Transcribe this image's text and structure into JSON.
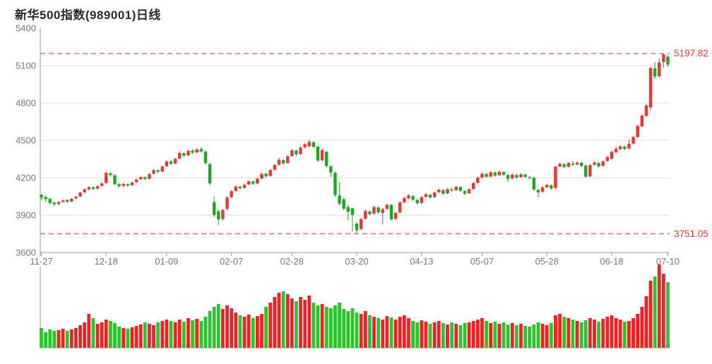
{
  "header": {
    "title": "新华500指数(989001)日线"
  },
  "chart_data": {
    "type": "candlestick",
    "title": "新华500指数(989001)日线",
    "legend_position": "none",
    "grid": true,
    "y_range": [
      3600,
      5400
    ],
    "y_ticks": [
      5400,
      5100,
      4800,
      4500,
      4200,
      3900,
      3600
    ],
    "x_tick_labels": [
      "11-27",
      "12-18",
      "01-09",
      "02-07",
      "02-28",
      "03-20",
      "04-13",
      "05-07",
      "05-28",
      "06-18",
      "07-10"
    ],
    "x_tick_indices": [
      0,
      15,
      29,
      44,
      58,
      73,
      88,
      102,
      117,
      132,
      145
    ],
    "upper_reference": {
      "value": 5197.82,
      "label": "5197.82"
    },
    "lower_reference": {
      "value": 3751.05,
      "label": "3751.05"
    },
    "colors": {
      "up": "#e53935",
      "down": "#1fa81f",
      "volume_up": "#ee2222",
      "volume_down": "#2bc42b",
      "reference_line": "#f58080",
      "reference_text": "#e8352f",
      "grid": "#dcdcdc",
      "axis": "#999999",
      "tick_text": "#787878",
      "title_text": "#2a2a2a"
    },
    "candles": [
      [
        4063,
        4070,
        4020,
        4042
      ],
      [
        4045,
        4058,
        4008,
        4030
      ],
      [
        4032,
        4038,
        3988,
        3998
      ],
      [
        4000,
        4012,
        3972,
        3988
      ],
      [
        3990,
        4012,
        3978,
        4005
      ],
      [
        4006,
        4026,
        4000,
        4018
      ],
      [
        4022,
        4028,
        3998,
        4008
      ],
      [
        4010,
        4038,
        4004,
        4032
      ],
      [
        4034,
        4054,
        4028,
        4048
      ],
      [
        4050,
        4088,
        4044,
        4082
      ],
      [
        4084,
        4114,
        4076,
        4108
      ],
      [
        4106,
        4132,
        4098,
        4124
      ],
      [
        4124,
        4130,
        4100,
        4110
      ],
      [
        4112,
        4140,
        4106,
        4132
      ],
      [
        4134,
        4162,
        4128,
        4155
      ],
      [
        4158,
        4248,
        4150,
        4238
      ],
      [
        4235,
        4244,
        4210,
        4222
      ],
      [
        4220,
        4228,
        4140,
        4150
      ],
      [
        4148,
        4158,
        4120,
        4132
      ],
      [
        4135,
        4160,
        4125,
        4150
      ],
      [
        4148,
        4156,
        4126,
        4138
      ],
      [
        4140,
        4170,
        4134,
        4162
      ],
      [
        4164,
        4194,
        4158,
        4186
      ],
      [
        4188,
        4214,
        4180,
        4206
      ],
      [
        4204,
        4212,
        4180,
        4190
      ],
      [
        4192,
        4238,
        4186,
        4230
      ],
      [
        4232,
        4272,
        4226,
        4262
      ],
      [
        4260,
        4268,
        4238,
        4248
      ],
      [
        4250,
        4298,
        4244,
        4290
      ],
      [
        4292,
        4340,
        4286,
        4330
      ],
      [
        4332,
        4340,
        4302,
        4312
      ],
      [
        4314,
        4360,
        4308,
        4352
      ],
      [
        4354,
        4412,
        4348,
        4398
      ],
      [
        4396,
        4404,
        4366,
        4378
      ],
      [
        4380,
        4424,
        4374,
        4415
      ],
      [
        4418,
        4430,
        4392,
        4402
      ],
      [
        4404,
        4436,
        4398,
        4428
      ],
      [
        4430,
        4445,
        4400,
        4412
      ],
      [
        4410,
        4418,
        4305,
        4318
      ],
      [
        4310,
        4320,
        4140,
        4155
      ],
      [
        4005,
        4050,
        3885,
        3902
      ],
      [
        3932,
        3945,
        3822,
        3866
      ],
      [
        3870,
        3952,
        3852,
        3942
      ],
      [
        3950,
        4052,
        3938,
        4042
      ],
      [
        4044,
        4102,
        4036,
        4092
      ],
      [
        4094,
        4140,
        4086,
        4130
      ],
      [
        4128,
        4136,
        4106,
        4116
      ],
      [
        4118,
        4152,
        4112,
        4144
      ],
      [
        4146,
        4180,
        4140,
        4172
      ],
      [
        4170,
        4178,
        4142,
        4152
      ],
      [
        4155,
        4200,
        4148,
        4192
      ],
      [
        4194,
        4240,
        4188,
        4230
      ],
      [
        4232,
        4240,
        4202,
        4212
      ],
      [
        4215,
        4270,
        4208,
        4262
      ],
      [
        4264,
        4312,
        4258,
        4302
      ],
      [
        4305,
        4362,
        4298,
        4345
      ],
      [
        4342,
        4352,
        4305,
        4315
      ],
      [
        4318,
        4380,
        4312,
        4372
      ],
      [
        4374,
        4432,
        4368,
        4420
      ],
      [
        4418,
        4428,
        4375,
        4388
      ],
      [
        4390,
        4452,
        4384,
        4442
      ],
      [
        4444,
        4480,
        4436,
        4470
      ],
      [
        4452,
        4505,
        4444,
        4488
      ],
      [
        4486,
        4492,
        4438,
        4448
      ],
      [
        4450,
        4458,
        4326,
        4338
      ],
      [
        4340,
        4435,
        4332,
        4422
      ],
      [
        4408,
        4418,
        4282,
        4295
      ],
      [
        4292,
        4300,
        4205,
        4242
      ],
      [
        4240,
        4250,
        4048,
        4062
      ],
      [
        4058,
        4165,
        3976,
        3992
      ],
      [
        4028,
        4040,
        3938,
        3952
      ],
      [
        3965,
        3985,
        3858,
        3928
      ],
      [
        3955,
        3962,
        3768,
        3902
      ],
      [
        3832,
        3845,
        3751.05,
        3778
      ],
      [
        3788,
        3880,
        3780,
        3868
      ],
      [
        3872,
        3945,
        3865,
        3932
      ],
      [
        3930,
        3938,
        3896,
        3908
      ],
      [
        3912,
        3975,
        3905,
        3965
      ],
      [
        3962,
        3970,
        3912,
        3922
      ],
      [
        3918,
        3958,
        3826,
        3948
      ],
      [
        3950,
        3992,
        3942,
        3984
      ],
      [
        3982,
        3990,
        3856,
        3866
      ],
      [
        3870,
        3928,
        3862,
        3918
      ],
      [
        3922,
        4012,
        3915,
        4002
      ],
      [
        4004,
        4046,
        3996,
        4038
      ],
      [
        4036,
        4068,
        4028,
        4058
      ],
      [
        4054,
        4062,
        4014,
        4024
      ],
      [
        4022,
        4030,
        3985,
        3996
      ],
      [
        3998,
        4052,
        3990,
        4044
      ],
      [
        4046,
        4078,
        4040,
        4068
      ],
      [
        4064,
        4072,
        4032,
        4042
      ],
      [
        4045,
        4090,
        4038,
        4082
      ],
      [
        4084,
        4112,
        4076,
        4104
      ],
      [
        4100,
        4108,
        4062,
        4072
      ],
      [
        4075,
        4118,
        4068,
        4108
      ],
      [
        4106,
        4122,
        4088,
        4098
      ],
      [
        4100,
        4136,
        4094,
        4128
      ],
      [
        4126,
        4134,
        4086,
        4096
      ],
      [
        4094,
        4102,
        4060,
        4072
      ],
      [
        4076,
        4116,
        4070,
        4108
      ],
      [
        4110,
        4166,
        4104,
        4158
      ],
      [
        4160,
        4210,
        4154,
        4200
      ],
      [
        4202,
        4242,
        4196,
        4232
      ],
      [
        4230,
        4238,
        4198,
        4208
      ],
      [
        4210,
        4254,
        4204,
        4244
      ],
      [
        4242,
        4250,
        4208,
        4218
      ],
      [
        4220,
        4258,
        4214,
        4248
      ],
      [
        4246,
        4252,
        4214,
        4224
      ],
      [
        4222,
        4230,
        4165,
        4192
      ],
      [
        4194,
        4234,
        4188,
        4225
      ],
      [
        4222,
        4230,
        4192,
        4202
      ],
      [
        4205,
        4236,
        4198,
        4228
      ],
      [
        4226,
        4234,
        4198,
        4208
      ],
      [
        4206,
        4214,
        4188,
        4198
      ],
      [
        4200,
        4208,
        4095,
        4106
      ],
      [
        4102,
        4112,
        4042,
        4082
      ],
      [
        4088,
        4132,
        4080,
        4122
      ],
      [
        4124,
        4150,
        4116,
        4142
      ],
      [
        4140,
        4146,
        4105,
        4115
      ],
      [
        4118,
        4298,
        4110,
        4288
      ],
      [
        4290,
        4322,
        4284,
        4312
      ],
      [
        4308,
        4316,
        4276,
        4286
      ],
      [
        4288,
        4326,
        4282,
        4318
      ],
      [
        4315,
        4338,
        4292,
        4305
      ],
      [
        4308,
        4330,
        4300,
        4322
      ],
      [
        4320,
        4328,
        4285,
        4295
      ],
      [
        4298,
        4306,
        4198,
        4208
      ],
      [
        4212,
        4312,
        4205,
        4302
      ],
      [
        4304,
        4332,
        4298,
        4322
      ],
      [
        4318,
        4326,
        4282,
        4292
      ],
      [
        4295,
        4340,
        4288,
        4332
      ],
      [
        4334,
        4375,
        4328,
        4366
      ],
      [
        4352,
        4418,
        4345,
        4408
      ],
      [
        4405,
        4448,
        4396,
        4432
      ],
      [
        4430,
        4460,
        4422,
        4452
      ],
      [
        4450,
        4458,
        4420,
        4432
      ],
      [
        4435,
        4505,
        4428,
        4472
      ],
      [
        4474,
        4536,
        4466,
        4526
      ],
      [
        4528,
        4625,
        4520,
        4615
      ],
      [
        4612,
        4710,
        4605,
        4700
      ],
      [
        4696,
        4792,
        4688,
        4780
      ],
      [
        4765,
        5090,
        4740,
        5080
      ],
      [
        5078,
        5128,
        4992,
        5012
      ],
      [
        5015,
        5158,
        5006,
        5125
      ],
      [
        5128,
        5197.82,
        5082,
        5190
      ],
      [
        5172,
        5182,
        5088,
        5108
      ]
    ],
    "volumes": [
      28,
      22,
      26,
      24,
      25,
      27,
      24,
      26,
      28,
      32,
      36,
      48,
      42,
      34,
      36,
      40,
      38,
      35,
      30,
      28,
      27,
      29,
      31,
      33,
      36,
      34,
      32,
      36,
      38,
      40,
      38,
      36,
      40,
      37,
      42,
      39,
      41,
      38,
      44,
      52,
      58,
      62,
      55,
      60,
      56,
      50,
      46,
      44,
      47,
      42,
      45,
      48,
      58,
      64,
      72,
      78,
      80,
      76,
      70,
      66,
      72,
      68,
      74,
      64,
      60,
      62,
      58,
      56,
      60,
      64,
      55,
      52,
      56,
      50,
      48,
      52,
      46,
      44,
      42,
      40,
      45,
      43,
      40,
      44,
      46,
      42,
      38,
      36,
      39,
      37,
      34,
      36,
      38,
      35,
      33,
      36,
      34,
      32,
      35,
      36,
      38,
      40,
      42,
      38,
      35,
      37,
      34,
      36,
      33,
      35,
      32,
      34,
      31,
      30,
      33,
      36,
      34,
      32,
      35,
      46,
      48,
      44,
      42,
      40,
      38,
      36,
      39,
      42,
      40,
      37,
      41,
      44,
      46,
      42,
      40,
      37,
      38,
      42,
      48,
      58,
      73,
      95,
      101,
      118,
      105,
      93
    ]
  }
}
